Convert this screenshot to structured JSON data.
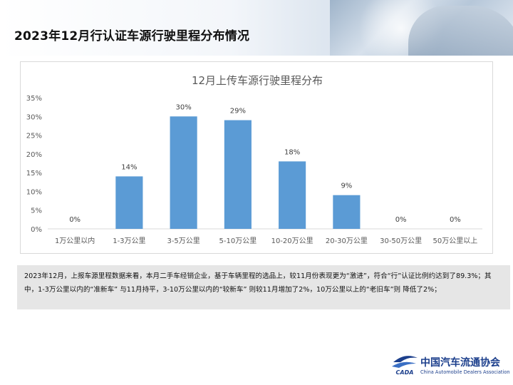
{
  "page": {
    "title": "2023年12月行认证车源行驶里程分布情况"
  },
  "chart_data": {
    "type": "bar",
    "title": "12月上传车源行驶里程分布",
    "categories": [
      "1万公里以内",
      "1-3万公里",
      "3-5万公里",
      "5-10万公里",
      "10-20万公里",
      "20-30万公里",
      "30-50万公里",
      "50万公里以上"
    ],
    "values": [
      0,
      14,
      30,
      29,
      18,
      9,
      0,
      0
    ],
    "data_labels": [
      "0%",
      "14%",
      "30%",
      "29%",
      "18%",
      "9%",
      "0%",
      "0%"
    ],
    "ylim": [
      0,
      35
    ],
    "yticks": [
      "0%",
      "5%",
      "10%",
      "15%",
      "20%",
      "25%",
      "30%",
      "35%"
    ],
    "grid": false,
    "bar_color": "#5b9bd5",
    "xlabel": "",
    "ylabel": ""
  },
  "notes": {
    "text": "2023年12月，上报车源里程数据来看，本月二手车经销企业，基于车辆里程的选品上，较11月份表现更为“激进”，符合“行”认证比例约达到了89.3%；其中，1-3万公里以内的“准新车” 与11月持平，3-10万公里以内的“较新车” 则较11月增加了2%，10万公里以上的“老旧车”则 降低了2%；"
  },
  "logo": {
    "cn": "中国汽车流通协会",
    "en": "China Automobile Dealers Association",
    "mark_text": "CADA"
  }
}
